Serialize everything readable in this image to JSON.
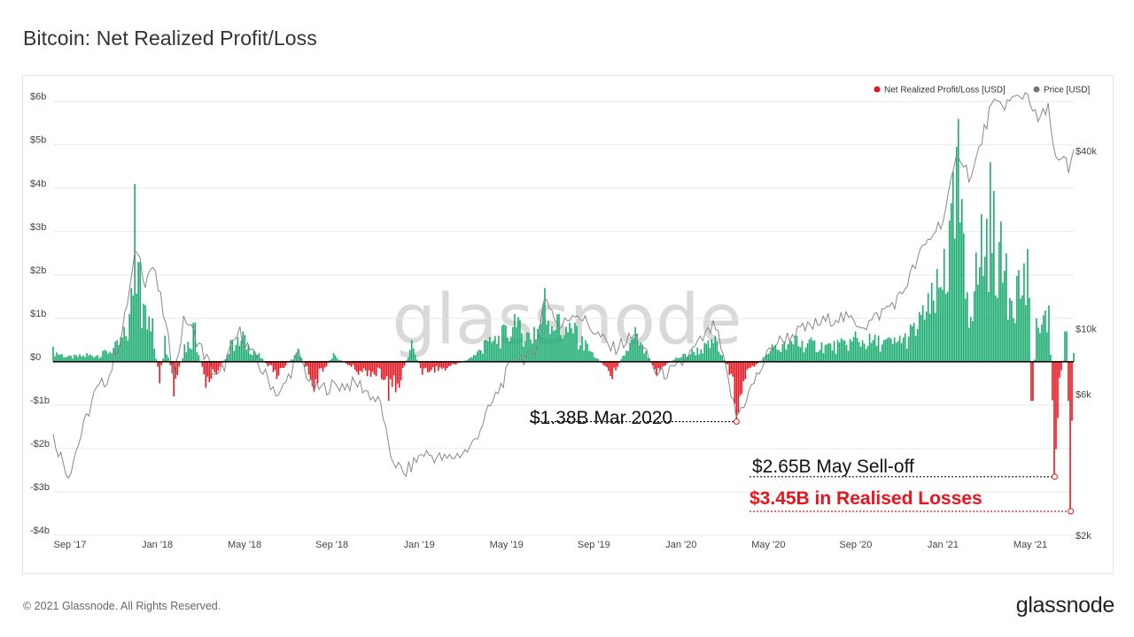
{
  "header": {
    "title": "Bitcoin: Net Realized Profit/Loss"
  },
  "footer": {
    "copyright": "© 2021 Glassnode. All Rights Reserved.",
    "brand": "glassnode"
  },
  "watermark": "glassnode",
  "colors": {
    "profit": "#1aab6e",
    "loss": "#e8141e",
    "price": "#888888",
    "zero_line": "#000000",
    "grid": "#e8e8e8"
  },
  "chart_data": {
    "type": "bar",
    "title": "Bitcoin: Net Realized Profit/Loss",
    "legend": {
      "placement": "top-right",
      "items": [
        {
          "label": "Net Realized Profit/Loss [USD]",
          "color": "#e8141e"
        },
        {
          "label": "Price [USD]",
          "color": "#777777"
        }
      ]
    },
    "grid": true,
    "x_ticks": [
      "Sep '17",
      "Jan '18",
      "May '18",
      "Sep '18",
      "Jan '19",
      "May '19",
      "Sep '19",
      "Jan '20",
      "May '20",
      "Sep '20",
      "Jan '21",
      "May '21"
    ],
    "x_range": [
      "2017-08-25",
      "2021-06-14"
    ],
    "y_left": {
      "label": "Net Realized Profit/Loss [USD]",
      "range": [
        -4,
        6.3
      ],
      "unit": "billion USD",
      "ticks": [
        {
          "value": 6,
          "label": "$6b"
        },
        {
          "value": 5,
          "label": "$5b"
        },
        {
          "value": 4,
          "label": "$4b"
        },
        {
          "value": 3,
          "label": "$3b"
        },
        {
          "value": 2,
          "label": "$2b"
        },
        {
          "value": 1,
          "label": "$1b"
        },
        {
          "value": 0,
          "label": "$0"
        },
        {
          "value": -1,
          "label": "-$1b"
        },
        {
          "value": -2,
          "label": "-$2b"
        },
        {
          "value": -3,
          "label": "-$3b"
        },
        {
          "value": -4,
          "label": "-$4b"
        }
      ]
    },
    "y_right": {
      "label": "Price [USD]",
      "scale": "log",
      "range": [
        2000,
        65000
      ],
      "ticks": [
        {
          "value": 40000,
          "label": "$40k"
        },
        {
          "value": 10000,
          "label": "$10k"
        },
        {
          "value": 6000,
          "label": "$6k"
        },
        {
          "value": 2000,
          "label": "$2k"
        }
      ]
    },
    "series": [
      {
        "name": "Net Realized Profit/Loss [USD]",
        "unit": "billion USD",
        "points": [
          [
            "2017-08-25",
            0.35
          ],
          [
            "2017-09-15",
            0.15
          ],
          [
            "2017-10-10",
            0.2
          ],
          [
            "2017-11-01",
            0.25
          ],
          [
            "2017-11-20",
            0.5
          ],
          [
            "2017-12-07",
            1.1
          ],
          [
            "2017-12-15",
            4.1
          ],
          [
            "2017-12-20",
            2.3
          ],
          [
            "2017-12-28",
            1.3
          ],
          [
            "2018-01-07",
            1.0
          ],
          [
            "2018-01-16",
            -0.5
          ],
          [
            "2018-01-25",
            0.6
          ],
          [
            "2018-02-06",
            -0.8
          ],
          [
            "2018-02-20",
            0.4
          ],
          [
            "2018-03-05",
            0.9
          ],
          [
            "2018-03-20",
            -0.6
          ],
          [
            "2018-04-05",
            -0.3
          ],
          [
            "2018-04-25",
            0.5
          ],
          [
            "2018-05-10",
            0.7
          ],
          [
            "2018-06-01",
            0.2
          ],
          [
            "2018-06-25",
            -0.4
          ],
          [
            "2018-07-25",
            0.3
          ],
          [
            "2018-08-15",
            -0.7
          ],
          [
            "2018-09-10",
            0.2
          ],
          [
            "2018-10-15",
            -0.3
          ],
          [
            "2018-11-15",
            -0.4
          ],
          [
            "2018-11-25",
            -0.9
          ],
          [
            "2018-12-10",
            -0.6
          ],
          [
            "2018-12-25",
            0.5
          ],
          [
            "2019-01-10",
            -0.3
          ],
          [
            "2019-02-10",
            -0.2
          ],
          [
            "2019-03-15",
            0.1
          ],
          [
            "2019-04-05",
            0.5
          ],
          [
            "2019-05-15",
            1.1
          ],
          [
            "2019-06-10",
            0.8
          ],
          [
            "2019-06-26",
            1.7
          ],
          [
            "2019-07-15",
            1.1
          ],
          [
            "2019-08-05",
            0.9
          ],
          [
            "2019-08-20",
            0.5
          ],
          [
            "2019-09-25",
            -0.4
          ],
          [
            "2019-10-26",
            0.8
          ],
          [
            "2019-11-25",
            -0.3
          ],
          [
            "2019-12-20",
            0.1
          ],
          [
            "2020-02-12",
            0.6
          ],
          [
            "2020-03-03",
            -0.3
          ],
          [
            "2020-03-12",
            -1.38
          ],
          [
            "2020-03-25",
            -0.4
          ],
          [
            "2020-04-30",
            0.4
          ],
          [
            "2020-06-01",
            0.6
          ],
          [
            "2020-07-27",
            0.5
          ],
          [
            "2020-08-20",
            0.7
          ],
          [
            "2020-10-21",
            0.6
          ],
          [
            "2020-11-20",
            1.3
          ],
          [
            "2020-12-20",
            2.6
          ],
          [
            "2021-01-08",
            5.6
          ],
          [
            "2021-01-20",
            1.6
          ],
          [
            "2021-02-08",
            3.4
          ],
          [
            "2021-02-21",
            4.6
          ],
          [
            "2021-03-15",
            2.5
          ],
          [
            "2021-04-13",
            2.6
          ],
          [
            "2021-04-18",
            -0.9
          ],
          [
            "2021-04-25",
            1.0
          ],
          [
            "2021-05-12",
            1.3
          ],
          [
            "2021-05-19",
            -2.65
          ],
          [
            "2021-05-23",
            -1.3
          ],
          [
            "2021-06-03",
            0.7
          ],
          [
            "2021-06-08",
            -0.9
          ],
          [
            "2021-06-10",
            -3.45
          ],
          [
            "2021-06-14",
            0.2
          ]
        ]
      },
      {
        "name": "Price [USD]",
        "unit": "USD",
        "points": [
          [
            "2017-08-25",
            4300
          ],
          [
            "2017-09-15",
            3200
          ],
          [
            "2017-10-01",
            4300
          ],
          [
            "2017-10-20",
            6000
          ],
          [
            "2017-11-10",
            7000
          ],
          [
            "2017-11-28",
            10000
          ],
          [
            "2017-12-17",
            19000
          ],
          [
            "2017-12-28",
            14500
          ],
          [
            "2018-01-07",
            16500
          ],
          [
            "2018-01-20",
            12000
          ],
          [
            "2018-02-06",
            7000
          ],
          [
            "2018-02-20",
            11000
          ],
          [
            "2018-03-10",
            9000
          ],
          [
            "2018-04-06",
            6700
          ],
          [
            "2018-05-05",
            9800
          ],
          [
            "2018-06-01",
            7500
          ],
          [
            "2018-06-29",
            5900
          ],
          [
            "2018-07-25",
            8200
          ],
          [
            "2018-08-14",
            6200
          ],
          [
            "2018-09-10",
            6400
          ],
          [
            "2018-10-15",
            6500
          ],
          [
            "2018-11-15",
            5500
          ],
          [
            "2018-11-25",
            3800
          ],
          [
            "2018-12-15",
            3200
          ],
          [
            "2019-01-10",
            3800
          ],
          [
            "2019-02-10",
            3600
          ],
          [
            "2019-03-15",
            3900
          ],
          [
            "2019-04-05",
            5000
          ],
          [
            "2019-05-15",
            8000
          ],
          [
            "2019-06-10",
            8000
          ],
          [
            "2019-06-26",
            13000
          ],
          [
            "2019-07-15",
            10000
          ],
          [
            "2019-08-05",
            11500
          ],
          [
            "2019-09-25",
            8500
          ],
          [
            "2019-10-26",
            9500
          ],
          [
            "2019-11-25",
            7000
          ],
          [
            "2019-12-20",
            7200
          ],
          [
            "2020-02-12",
            10300
          ],
          [
            "2020-03-12",
            5000
          ],
          [
            "2020-04-30",
            8800
          ],
          [
            "2020-06-01",
            9700
          ],
          [
            "2020-07-27",
            11000
          ],
          [
            "2020-09-05",
            10300
          ],
          [
            "2020-10-21",
            12800
          ],
          [
            "2020-11-20",
            18500
          ],
          [
            "2020-12-20",
            24000
          ],
          [
            "2021-01-08",
            40000
          ],
          [
            "2021-01-25",
            32000
          ],
          [
            "2021-02-21",
            56000
          ],
          [
            "2021-03-15",
            58000
          ],
          [
            "2021-04-13",
            63000
          ],
          [
            "2021-04-25",
            50000
          ],
          [
            "2021-05-12",
            56000
          ],
          [
            "2021-05-19",
            38000
          ],
          [
            "2021-05-25",
            36000
          ],
          [
            "2021-06-03",
            37000
          ],
          [
            "2021-06-08",
            33000
          ],
          [
            "2021-06-14",
            40000
          ]
        ]
      }
    ],
    "annotations": [
      {
        "text": "$1.38B Mar 2020",
        "date": "2020-03-12",
        "value": -1.38,
        "color": "#111111"
      },
      {
        "text": "$2.65B May Sell-off",
        "date": "2021-05-19",
        "value": -2.65,
        "color": "#111111"
      },
      {
        "text": "$3.45B in Realised Losses",
        "date": "2021-06-10",
        "value": -3.45,
        "color": "#e8141e"
      }
    ]
  }
}
